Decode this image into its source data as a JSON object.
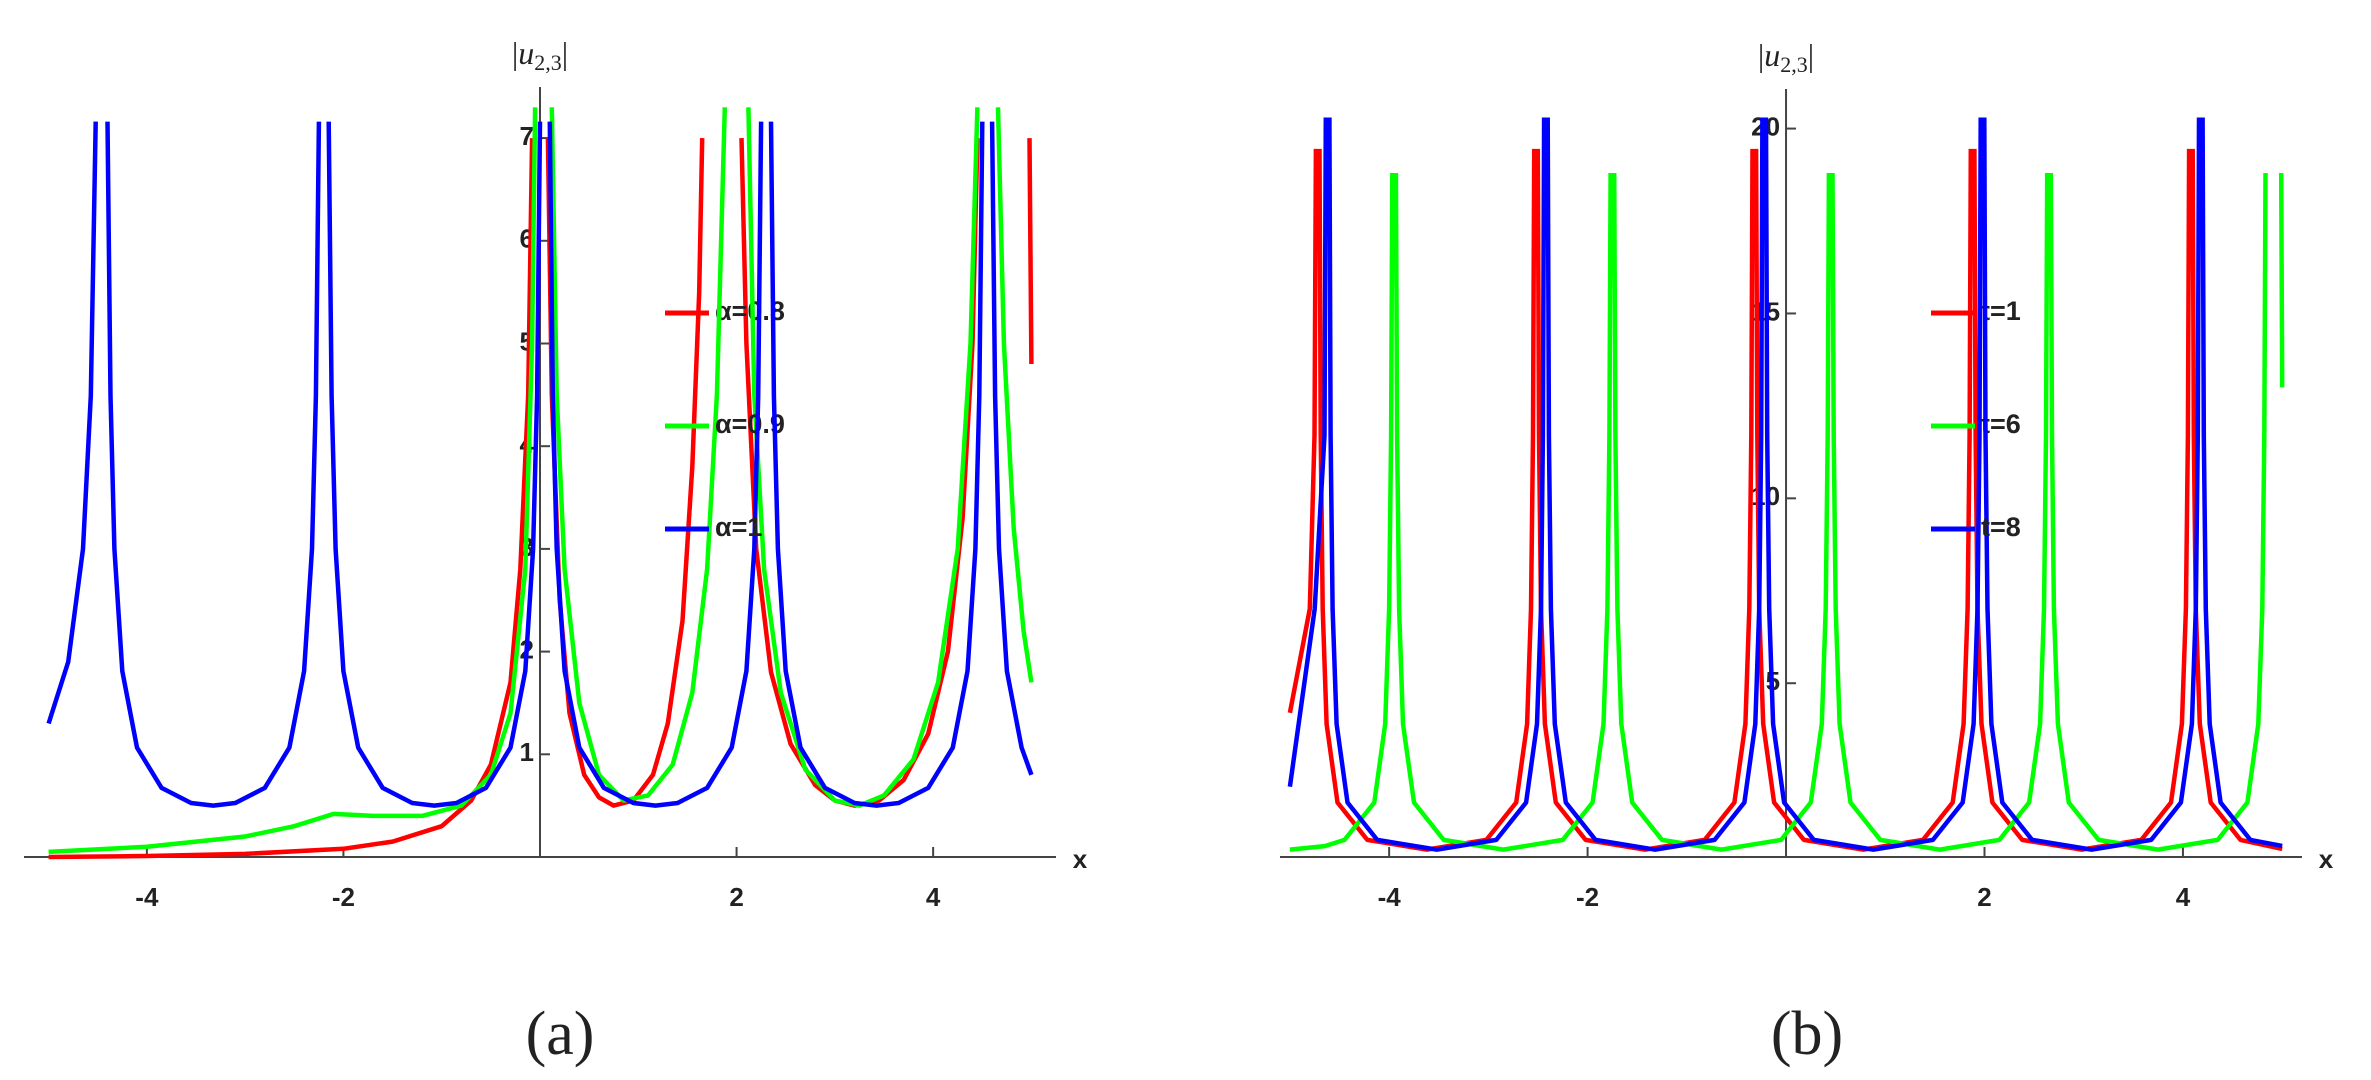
{
  "chart_data": [
    {
      "type": "line",
      "caption": "(a)",
      "ylabel_parts": [
        "|",
        "u",
        "2,3",
        "|"
      ],
      "xlabel": "x",
      "xlim": [
        -5.25,
        5.25
      ],
      "ylim": [
        0,
        7.4
      ],
      "xticks": [
        -4,
        -2,
        2,
        4
      ],
      "yticks": [
        1,
        2,
        3,
        4,
        5,
        6,
        7
      ],
      "series": [
        {
          "name": "α=0.8",
          "color": "#ff0000",
          "x": [
            -5,
            -4,
            -3,
            -2,
            -1.5,
            -1,
            -0.7,
            -0.5,
            -0.3,
            -0.2,
            -0.12,
            -0.08,
            0,
            0.08,
            0.12,
            0.2,
            0.3,
            0.45,
            0.6,
            0.75,
            0.95,
            1.15,
            1.3,
            1.45,
            1.55,
            1.62,
            1.65,
            1.85,
            2.05,
            2.1,
            2.2,
            2.35,
            2.55,
            2.8,
            3.0,
            3.2,
            3.45,
            3.7,
            3.95,
            4.15,
            4.3,
            4.4,
            4.45,
            4.7,
            4.98,
            5.0
          ],
          "values": [
            0,
            0.01,
            0.03,
            0.08,
            0.15,
            0.3,
            0.55,
            0.9,
            1.7,
            2.8,
            4.5,
            7,
            null,
            7,
            4.5,
            2.5,
            1.4,
            0.8,
            0.58,
            0.5,
            0.55,
            0.8,
            1.3,
            2.3,
            3.8,
            5.5,
            7,
            null,
            7,
            5,
            3,
            1.8,
            1.1,
            0.7,
            0.55,
            0.5,
            0.55,
            0.75,
            1.2,
            2.0,
            3.3,
            5,
            7,
            null,
            7,
            4.8
          ]
        },
        {
          "name": "α=0.9",
          "color": "#00ff00",
          "x": [
            -5,
            -4,
            -3,
            -2.5,
            -2.1,
            -1.7,
            -1.2,
            -0.8,
            -0.5,
            -0.3,
            -0.15,
            -0.08,
            -0.05,
            0.03,
            0.12,
            0.17,
            0.25,
            0.4,
            0.6,
            0.85,
            1.1,
            1.35,
            1.55,
            1.7,
            1.8,
            1.88,
            2.0,
            2.12,
            2.18,
            2.28,
            2.45,
            2.7,
            3.0,
            3.25,
            3.5,
            3.8,
            4.05,
            4.25,
            4.38,
            4.45,
            4.55,
            4.66,
            4.72,
            4.82,
            4.92,
            5.0
          ],
          "values": [
            0.05,
            0.1,
            0.2,
            0.3,
            0.42,
            0.4,
            0.4,
            0.5,
            0.8,
            1.4,
            2.8,
            5,
            7.3,
            null,
            7.3,
            4.5,
            2.8,
            1.5,
            0.8,
            0.55,
            0.6,
            0.9,
            1.6,
            2.8,
            4.5,
            7.3,
            null,
            7.3,
            4.5,
            2.8,
            1.6,
            0.85,
            0.55,
            0.5,
            0.6,
            0.95,
            1.7,
            3.0,
            5,
            7.3,
            null,
            7.3,
            5,
            3.2,
            2.2,
            1.7
          ]
        },
        {
          "name": "α=1",
          "color": "#0000ff",
          "x": [
            -5,
            -4.8,
            -4.65,
            -4.57,
            -4.52,
            -4.45,
            -4.4,
            -4.37,
            -4.33,
            -4.25,
            -4.1,
            -3.85,
            -3.55,
            -3.325,
            -3.1,
            -2.8,
            -2.55,
            -2.4,
            -2.32,
            -2.28,
            -2.25,
            -2.2,
            -2.15,
            -2.12,
            -2.08,
            -2.0,
            -1.85,
            -1.6,
            -1.3,
            -1.075,
            -0.85,
            -0.55,
            -0.3,
            -0.15,
            -0.07,
            -0.03,
            0.0,
            0.05,
            0.1,
            0.13,
            0.17,
            0.25,
            0.4,
            0.65,
            0.95,
            1.175,
            1.4,
            1.7,
            1.95,
            2.1,
            2.18,
            2.22,
            2.25,
            2.3,
            2.35,
            2.38,
            2.42,
            2.5,
            2.65,
            2.9,
            3.2,
            3.425,
            3.65,
            3.95,
            4.2,
            4.35,
            4.43,
            4.47,
            4.5,
            4.55,
            4.6,
            4.63,
            4.67,
            4.75,
            4.9,
            5.0
          ],
          "values": [
            1.3,
            1.9,
            3.0,
            4.49,
            7.16,
            null,
            7.16,
            4.49,
            3.0,
            1.81,
            1.065,
            0.673,
            0.526,
            0.5,
            0.526,
            0.673,
            1.065,
            1.81,
            3.0,
            4.49,
            7.16,
            null,
            7.16,
            4.49,
            3.0,
            1.81,
            1.065,
            0.673,
            0.526,
            0.5,
            0.526,
            0.673,
            1.065,
            1.81,
            3.0,
            4.49,
            7.16,
            null,
            7.16,
            4.49,
            3.0,
            1.81,
            1.065,
            0.673,
            0.526,
            0.5,
            0.526,
            0.673,
            1.065,
            1.81,
            3.0,
            4.49,
            7.16,
            null,
            7.16,
            4.49,
            3.0,
            1.81,
            1.065,
            0.673,
            0.526,
            0.5,
            0.526,
            0.673,
            1.065,
            1.81,
            3.0,
            4.49,
            7.16,
            null,
            7.16,
            4.49,
            3.0,
            1.81,
            1.065,
            0.8
          ]
        }
      ]
    },
    {
      "type": "line",
      "caption": "(b)",
      "ylabel_parts": [
        "|",
        "u",
        "2,3",
        "|"
      ],
      "xlabel": "x",
      "xlim": [
        -5.1,
        5.2
      ],
      "ylim": [
        0.3,
        20.8
      ],
      "xticks": [
        -4,
        -2,
        2,
        4
      ],
      "yticks": [
        5,
        10,
        15,
        20
      ],
      "series": [
        {
          "name": "t=1",
          "color": "#ff0000",
          "x": [
            -5,
            -4.8,
            -4.752,
            -4.738,
            -4.72,
            -4.702,
            -4.69,
            -4.67,
            -4.63,
            -4.52,
            -4.22,
            -3.62,
            -3.02,
            -2.72,
            -2.61,
            -2.57,
            -2.55,
            -2.538,
            -2.52,
            -2.502,
            -2.49,
            -2.47,
            -2.43,
            -2.32,
            -2.02,
            -1.42,
            -0.82,
            -0.52,
            -0.41,
            -0.37,
            -0.35,
            -0.338,
            -0.32,
            -0.302,
            -0.29,
            -0.27,
            -0.23,
            -0.12,
            0.18,
            0.78,
            1.38,
            1.68,
            1.79,
            1.83,
            1.85,
            1.862,
            1.88,
            1.898,
            1.91,
            1.93,
            1.97,
            2.08,
            2.38,
            2.98,
            3.58,
            3.88,
            3.99,
            4.03,
            4.05,
            4.062,
            4.08,
            4.098,
            4.11,
            4.13,
            4.17,
            4.28,
            4.58,
            5.0
          ],
          "values": [
            4.2,
            7.01,
            11.7,
            19.45,
            null,
            19.45,
            11.7,
            7.01,
            3.9,
            1.775,
            0.763,
            0.5,
            0.763,
            1.775,
            3.9,
            7.01,
            11.7,
            19.45,
            null,
            19.45,
            11.7,
            7.01,
            3.9,
            1.775,
            0.763,
            0.5,
            0.763,
            1.775,
            3.9,
            7.01,
            11.7,
            19.45,
            null,
            19.45,
            11.7,
            7.01,
            3.9,
            1.775,
            0.763,
            0.5,
            0.763,
            1.775,
            3.9,
            7.01,
            11.7,
            19.45,
            null,
            19.45,
            11.7,
            7.01,
            3.9,
            1.775,
            0.763,
            0.5,
            0.763,
            1.775,
            3.9,
            7.01,
            11.7,
            19.45,
            null,
            19.45,
            11.7,
            7.01,
            3.9,
            1.775,
            0.763,
            0.52
          ]
        },
        {
          "name": "t=6",
          "color": "#00ff00",
          "x": [
            -5,
            -4.65,
            -4.45,
            -4.15,
            -4.04,
            -4.0,
            -3.98,
            -3.968,
            -3.95,
            -3.932,
            -3.92,
            -3.9,
            -3.86,
            -3.75,
            -3.45,
            -2.85,
            -2.25,
            -1.95,
            -1.84,
            -1.8,
            -1.78,
            -1.768,
            -1.75,
            -1.732,
            -1.72,
            -1.7,
            -1.66,
            -1.55,
            -1.25,
            -0.65,
            -0.05,
            0.25,
            0.36,
            0.4,
            0.42,
            0.432,
            0.45,
            0.468,
            0.48,
            0.5,
            0.54,
            0.65,
            0.95,
            1.55,
            2.15,
            2.45,
            2.56,
            2.6,
            2.62,
            2.632,
            2.65,
            2.668,
            2.68,
            2.7,
            2.74,
            2.85,
            3.15,
            3.75,
            4.35,
            4.65,
            4.76,
            4.8,
            4.82,
            4.832,
            4.85,
            4.99,
            5.0
          ],
          "values": [
            0.5,
            0.594,
            0.763,
            1.775,
            3.9,
            7.01,
            11.7,
            18.8,
            null,
            18.8,
            11.7,
            7.01,
            3.9,
            1.775,
            0.763,
            0.5,
            0.763,
            1.775,
            3.9,
            7.01,
            11.7,
            18.8,
            null,
            18.8,
            11.7,
            7.01,
            3.9,
            1.775,
            0.763,
            0.5,
            0.763,
            1.775,
            3.9,
            7.01,
            11.7,
            18.8,
            null,
            18.8,
            11.7,
            7.01,
            3.9,
            1.775,
            0.763,
            0.5,
            0.763,
            1.775,
            3.9,
            7.01,
            11.7,
            18.8,
            null,
            18.8,
            11.7,
            7.01,
            3.9,
            1.775,
            0.763,
            0.5,
            0.763,
            1.775,
            3.9,
            7.01,
            11.7,
            18.8,
            null,
            18.8,
            13
          ]
        },
        {
          "name": "t=8",
          "color": "#0000ff",
          "x": [
            -5,
            -4.75,
            -4.652,
            -4.638,
            -4.62,
            -4.602,
            -4.59,
            -4.57,
            -4.53,
            -4.42,
            -4.12,
            -3.52,
            -2.92,
            -2.62,
            -2.51,
            -2.47,
            -2.45,
            -2.438,
            -2.42,
            -2.402,
            -2.39,
            -2.37,
            -2.33,
            -2.22,
            -1.92,
            -1.32,
            -0.72,
            -0.42,
            -0.31,
            -0.27,
            -0.25,
            -0.238,
            -0.22,
            -0.202,
            -0.19,
            -0.17,
            -0.13,
            -0.02,
            0.28,
            0.88,
            1.48,
            1.78,
            1.89,
            1.93,
            1.95,
            1.962,
            1.98,
            1.998,
            2.01,
            2.03,
            2.07,
            2.18,
            2.48,
            3.08,
            3.68,
            3.98,
            4.09,
            4.13,
            4.15,
            4.162,
            4.18,
            4.198,
            4.21,
            4.23,
            4.27,
            4.38,
            4.68,
            5.0
          ],
          "values": [
            2.2,
            7.01,
            11.7,
            20.3,
            null,
            20.3,
            11.7,
            7.01,
            3.9,
            1.775,
            0.763,
            0.5,
            0.763,
            1.775,
            3.9,
            7.01,
            11.7,
            20.3,
            null,
            20.3,
            11.7,
            7.01,
            3.9,
            1.775,
            0.763,
            0.5,
            0.763,
            1.775,
            3.9,
            7.01,
            11.7,
            20.3,
            null,
            20.3,
            11.7,
            7.01,
            3.9,
            1.775,
            0.763,
            0.5,
            0.763,
            1.775,
            3.9,
            7.01,
            11.7,
            20.3,
            null,
            20.3,
            11.7,
            7.01,
            3.9,
            1.775,
            0.763,
            0.5,
            0.763,
            1.775,
            3.9,
            7.01,
            11.7,
            20.3,
            null,
            20.3,
            11.7,
            7.01,
            3.9,
            1.775,
            0.763,
            0.6
          ]
        }
      ]
    }
  ]
}
